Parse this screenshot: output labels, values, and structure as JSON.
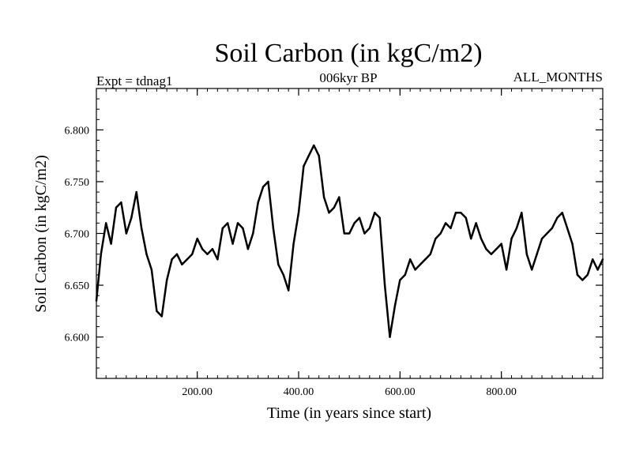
{
  "chart_data": {
    "type": "line",
    "title": "Soil Carbon (in kgC/m2)",
    "header_left": "Expt = tdnag1",
    "header_center": "006kyr BP",
    "header_right": "ALL_MONTHS",
    "xlabel": "Time (in years since start)",
    "ylabel": "Soil Carbon (in kgC/m2)",
    "xlim": [
      1,
      1000
    ],
    "ylim": [
      6.56,
      6.84
    ],
    "x_ticks": [
      {
        "value": 200,
        "label": "200.00"
      },
      {
        "value": 400,
        "label": "400.00"
      },
      {
        "value": 600,
        "label": "600.00"
      },
      {
        "value": 800,
        "label": "800.00"
      }
    ],
    "y_ticks": [
      {
        "value": 6.6,
        "label": "6.600"
      },
      {
        "value": 6.65,
        "label": "6.650"
      },
      {
        "value": 6.7,
        "label": "6.700"
      },
      {
        "value": 6.75,
        "label": "6.750"
      },
      {
        "value": 6.8,
        "label": "6.800"
      }
    ],
    "x_minor_step": 20,
    "y_minor_step": 0.01,
    "series": [
      {
        "name": "soil carbon",
        "color": "#000000",
        "x": [
          1,
          10,
          20,
          30,
          40,
          50,
          60,
          70,
          80,
          90,
          100,
          110,
          120,
          130,
          140,
          150,
          160,
          170,
          180,
          190,
          200,
          210,
          220,
          230,
          240,
          250,
          260,
          270,
          280,
          290,
          300,
          310,
          320,
          330,
          340,
          350,
          360,
          370,
          380,
          390,
          400,
          410,
          420,
          430,
          440,
          450,
          460,
          470,
          480,
          490,
          500,
          510,
          520,
          530,
          540,
          550,
          560,
          570,
          580,
          590,
          600,
          610,
          620,
          630,
          640,
          650,
          660,
          670,
          680,
          690,
          700,
          710,
          720,
          730,
          740,
          750,
          760,
          770,
          780,
          790,
          800,
          810,
          820,
          830,
          840,
          850,
          860,
          870,
          880,
          890,
          900,
          910,
          920,
          930,
          940,
          950,
          960,
          970,
          980,
          990,
          1000
        ],
        "values": [
          6.635,
          6.68,
          6.71,
          6.69,
          6.725,
          6.73,
          6.7,
          6.715,
          6.74,
          6.705,
          6.68,
          6.665,
          6.625,
          6.62,
          6.655,
          6.675,
          6.68,
          6.67,
          6.675,
          6.68,
          6.695,
          6.685,
          6.68,
          6.685,
          6.675,
          6.705,
          6.71,
          6.69,
          6.71,
          6.705,
          6.685,
          6.7,
          6.73,
          6.745,
          6.75,
          6.705,
          6.67,
          6.66,
          6.645,
          6.69,
          6.72,
          6.765,
          6.775,
          6.785,
          6.775,
          6.735,
          6.72,
          6.725,
          6.735,
          6.7,
          6.7,
          6.71,
          6.715,
          6.7,
          6.705,
          6.72,
          6.715,
          6.65,
          6.6,
          6.63,
          6.655,
          6.66,
          6.675,
          6.665,
          6.67,
          6.675,
          6.68,
          6.695,
          6.7,
          6.71,
          6.705,
          6.72,
          6.72,
          6.715,
          6.695,
          6.71,
          6.695,
          6.685,
          6.68,
          6.685,
          6.69,
          6.665,
          6.695,
          6.705,
          6.72,
          6.68,
          6.665,
          6.68,
          6.695,
          6.7,
          6.705,
          6.715,
          6.72,
          6.705,
          6.69,
          6.66,
          6.655,
          6.66,
          6.675,
          6.665,
          6.675
        ]
      }
    ]
  }
}
